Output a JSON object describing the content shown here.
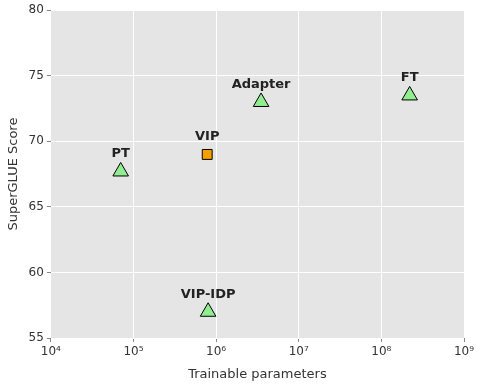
{
  "chart_data": {
    "type": "scatter",
    "x_label": "Trainable parameters",
    "y_label": "SuperGLUE Score",
    "log": "x",
    "grid": true,
    "xlim": [
      10000,
      1000000000
    ],
    "xticks": [
      {
        "value": 10000,
        "label": "10⁴"
      },
      {
        "value": 100000,
        "label": "10⁵"
      },
      {
        "value": 1000000,
        "label": "10⁶"
      },
      {
        "value": 10000000,
        "label": "10⁷"
      },
      {
        "value": 100000000,
        "label": "10⁸"
      },
      {
        "value": 1000000000,
        "label": "10⁹"
      }
    ],
    "ylim": [
      55,
      80
    ],
    "yticks": [
      55,
      60,
      65,
      70,
      75,
      80
    ],
    "series": [
      {
        "name": "PT",
        "color": "#90ee90",
        "marker": "triangle",
        "x": [
          70000
        ],
        "values": [
          67.7
        ]
      },
      {
        "name": "VIP",
        "color": "#f5a000",
        "marker": "square",
        "x": [
          780000
        ],
        "values": [
          69.0
        ]
      },
      {
        "name": "Adapter",
        "color": "#90ee90",
        "marker": "triangle",
        "x": [
          3500000
        ],
        "values": [
          73.0
        ]
      },
      {
        "name": "FT",
        "color": "#90ee90",
        "marker": "triangle",
        "x": [
          220000000
        ],
        "values": [
          73.5
        ]
      },
      {
        "name": "VIP-IDP",
        "color": "#90ee90",
        "marker": "triangle",
        "x": [
          800000
        ],
        "values": [
          57.0
        ]
      }
    ]
  }
}
